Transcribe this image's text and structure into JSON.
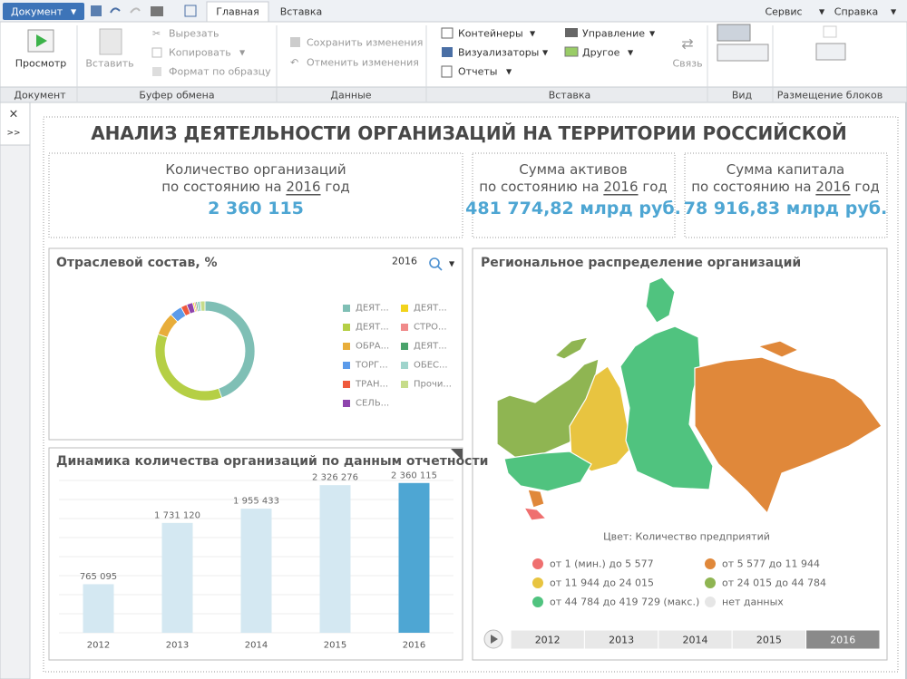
{
  "toolbar": {
    "document_button": "Документ",
    "tabs": [
      "Главная",
      "Вставка"
    ],
    "menu": [
      "Сервис",
      "Справка"
    ]
  },
  "ribbon": {
    "groups": [
      {
        "label": "Документ",
        "items": [
          "Просмотр"
        ]
      },
      {
        "label": "Буфер обмена",
        "items": [
          "Вставить",
          "Вырезать",
          "Копировать",
          "Формат по образцу"
        ]
      },
      {
        "label": "Данные",
        "items": [
          "Сохранить изменения",
          "Отменить изменения"
        ]
      },
      {
        "label": "Вставка",
        "items": [
          "Контейнеры",
          "Визуализаторы",
          "Отчеты",
          "Управление",
          "Другое",
          "Связь"
        ]
      },
      {
        "label": "Вид"
      },
      {
        "label": "Размещение блоков"
      }
    ]
  },
  "side_panel": {
    "close": "×",
    "expand": ">>"
  },
  "dashboard": {
    "title": "АНАЛИЗ ДЕЯТЕЛЬНОСТИ ОРГАНИЗАЦИЙ НА ТЕРРИТОРИИ РОССИЙСКОЙ",
    "kpis": [
      {
        "label": "Количество организаций",
        "sub_prefix": "по состоянию на",
        "year": "2016",
        "sub_suffix": "год",
        "value": "2 360 115"
      },
      {
        "label": "Сумма активов",
        "sub_prefix": "по состоянию на",
        "year": "2016",
        "sub_suffix": "год",
        "value": "481 774,82 млрд руб."
      },
      {
        "label": "Сумма капитала",
        "sub_prefix": "по состоянию на",
        "year": "2016",
        "sub_suffix": "год",
        "value": "78 916,83 млрд руб."
      }
    ]
  },
  "chart_data": [
    {
      "type": "pie",
      "title": "Отраслевой состав, %",
      "year": "2016",
      "donut": true,
      "categories": [
        "ДЕЯТ...",
        "ДЕЯТ...",
        "ОБРА...",
        "ТОРГ...",
        "ТРАН...",
        "СЕЛЬ...",
        "ДЕЯТ...",
        "СТРО...",
        "ДЕЯТ...",
        "ОБЕС...",
        "Прочи..."
      ],
      "values": [
        44.5,
        36.0,
        7.5,
        4.0,
        2.0,
        2.0,
        0.5,
        0.5,
        0.5,
        1.0,
        1.5
      ],
      "colors": [
        "#7fbfb5",
        "#b5cf45",
        "#e8ad3a",
        "#5b9bea",
        "#ef5a3c",
        "#8e44ad",
        "#f2d31b",
        "#f08a8a",
        "#4aa36b",
        "#9fd4cc",
        "#c6dc8a"
      ]
    },
    {
      "type": "bar",
      "title": "Динамика количества организаций по данным отчетности",
      "categories": [
        "2012",
        "2013",
        "2014",
        "2015",
        "2016"
      ],
      "values": [
        765095,
        1731120,
        1955433,
        2326276,
        2360115
      ],
      "value_labels": [
        "765 095",
        "1 731 120",
        "1 955 433",
        "2 326 276",
        "2 360 115"
      ],
      "colors": [
        "#d4e8f2",
        "#d4e8f2",
        "#d4e8f2",
        "#d4e8f2",
        "#4ea6d3"
      ],
      "ylim": [
        0,
        2600000
      ],
      "yticks": [
        0,
        300000,
        600000,
        900000,
        1200000,
        1500000,
        1800000,
        2100000,
        2400000
      ],
      "grid": true
    }
  ],
  "map": {
    "title": "Региональное распределение организаций",
    "legend_title": "Цвет: Количество предприятий",
    "legend": [
      {
        "label": "от 1 (мин.) до 5 577",
        "color": "#ef6f6f"
      },
      {
        "label": "от 5 577 до 11 944",
        "color": "#e0883a"
      },
      {
        "label": "от 11 944 до 24 015",
        "color": "#e8c440"
      },
      {
        "label": "от 24 015 до 44 784",
        "color": "#8fb552"
      },
      {
        "label": "от 44 784 до 419 729 (макс.)",
        "color": "#50c37f"
      },
      {
        "label": "нет данных",
        "color": "#e6e6e6"
      }
    ],
    "timeline": [
      "2012",
      "2013",
      "2014",
      "2015",
      "2016"
    ],
    "selected": 4
  }
}
